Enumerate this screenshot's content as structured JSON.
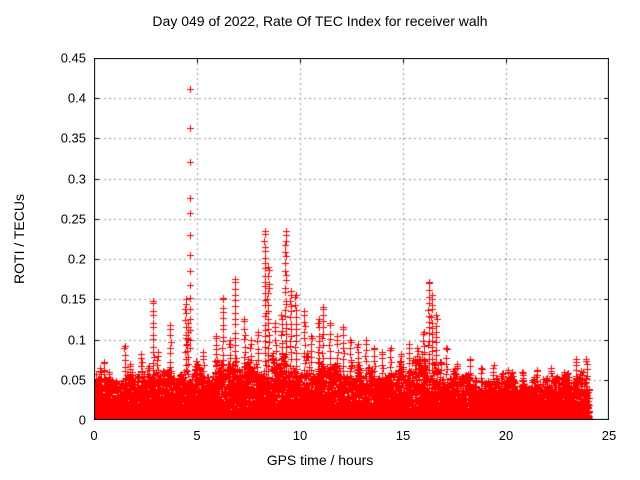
{
  "chart_data": {
    "type": "scatter",
    "title": "Day 049 of 2022, Rate Of TEC Index for receiver walh",
    "xlabel": "GPS time / hours",
    "ylabel": "ROTI / TECUs",
    "xlim": [
      0,
      25
    ],
    "ylim": [
      0,
      0.45
    ],
    "xticks": {
      "values": [
        0,
        5,
        10,
        15,
        20,
        25
      ],
      "labels": [
        "0",
        "5",
        "10",
        "15",
        "20",
        "25"
      ]
    },
    "yticks": {
      "values": [
        0,
        0.05,
        0.1,
        0.15,
        0.2,
        0.25,
        0.3,
        0.35,
        0.4,
        0.45
      ],
      "labels": [
        "0",
        "0.05",
        "0.1",
        "0.15",
        "0.2",
        "0.25",
        "0.3",
        "0.35",
        "0.4",
        "0.45"
      ]
    },
    "grid": {
      "on": true,
      "style": "dashed",
      "color": "#9b9b9b"
    },
    "colors": {
      "marker": "#ff0000",
      "frame": "#000000",
      "background": "#ffffff",
      "text": "#000000"
    },
    "marker": {
      "shape": "plus",
      "size": 7
    },
    "legend": "none",
    "data_hours_span": [
      0,
      24.03
    ],
    "baseline": {
      "points": 12000,
      "seed": 20220049,
      "y_offset": 0.002,
      "power": 2.6
    },
    "band_envelope": [
      [
        0,
        0.055
      ],
      [
        0.5,
        0.052
      ],
      [
        1,
        0.05
      ],
      [
        2,
        0.052
      ],
      [
        3,
        0.055
      ],
      [
        4,
        0.06
      ],
      [
        4.7,
        0.065
      ],
      [
        5.2,
        0.055
      ],
      [
        6,
        0.06
      ],
      [
        7,
        0.065
      ],
      [
        8,
        0.07
      ],
      [
        9,
        0.072
      ],
      [
        10,
        0.072
      ],
      [
        11,
        0.075
      ],
      [
        12,
        0.072
      ],
      [
        13,
        0.066
      ],
      [
        14,
        0.06
      ],
      [
        15,
        0.062
      ],
      [
        16,
        0.07
      ],
      [
        16.6,
        0.075
      ],
      [
        17,
        0.058
      ],
      [
        18,
        0.05
      ],
      [
        19,
        0.048
      ],
      [
        20,
        0.05
      ],
      [
        21,
        0.046
      ],
      [
        22,
        0.046
      ],
      [
        23,
        0.05
      ],
      [
        23.8,
        0.054
      ],
      [
        24.05,
        0.052
      ]
    ],
    "spikes": [
      [
        0.3,
        0.065
      ],
      [
        0.5,
        0.072
      ],
      [
        0.75,
        0.06
      ],
      [
        1.5,
        0.092
      ],
      [
        1.75,
        0.07
      ],
      [
        2.3,
        0.082
      ],
      [
        2.87,
        0.148
      ],
      [
        3.1,
        0.085
      ],
      [
        3.7,
        0.118
      ],
      [
        4.45,
        0.15
      ],
      [
        4.55,
        0.12
      ],
      [
        5.3,
        0.085
      ],
      [
        5.9,
        0.105
      ],
      [
        6.26,
        0.152
      ],
      [
        6.6,
        0.1
      ],
      [
        6.84,
        0.175
      ],
      [
        7.3,
        0.125
      ],
      [
        7.6,
        0.1
      ],
      [
        7.95,
        0.11
      ],
      [
        8.3,
        0.235
      ],
      [
        8.45,
        0.19
      ],
      [
        8.8,
        0.12
      ],
      [
        9.1,
        0.13
      ],
      [
        9.3,
        0.235
      ],
      [
        9.55,
        0.16
      ],
      [
        9.8,
        0.155
      ],
      [
        10.2,
        0.135
      ],
      [
        10.55,
        0.105
      ],
      [
        10.9,
        0.125
      ],
      [
        11.1,
        0.14
      ],
      [
        11.45,
        0.12
      ],
      [
        11.8,
        0.105
      ],
      [
        12.1,
        0.115
      ],
      [
        12.45,
        0.1
      ],
      [
        12.8,
        0.095
      ],
      [
        13.2,
        0.1
      ],
      [
        13.6,
        0.09
      ],
      [
        14.0,
        0.085
      ],
      [
        14.4,
        0.09
      ],
      [
        14.9,
        0.082
      ],
      [
        15.3,
        0.095
      ],
      [
        15.7,
        0.09
      ],
      [
        16.0,
        0.11
      ],
      [
        16.25,
        0.172
      ],
      [
        16.4,
        0.155
      ],
      [
        16.6,
        0.13
      ],
      [
        17.1,
        0.09
      ],
      [
        17.6,
        0.07
      ],
      [
        18.25,
        0.076
      ],
      [
        18.8,
        0.065
      ],
      [
        19.4,
        0.068
      ],
      [
        20.1,
        0.062
      ],
      [
        20.8,
        0.06
      ],
      [
        21.5,
        0.062
      ],
      [
        22.2,
        0.065
      ],
      [
        22.8,
        0.06
      ],
      [
        23.4,
        0.076
      ],
      [
        23.9,
        0.076
      ]
    ],
    "peak_column": {
      "t": 4.67,
      "values": [
        0.411,
        0.363,
        0.321,
        0.276,
        0.257,
        0.23,
        0.205,
        0.185,
        0.168,
        0.152,
        0.138,
        0.125,
        0.112,
        0.1,
        0.09
      ]
    }
  }
}
